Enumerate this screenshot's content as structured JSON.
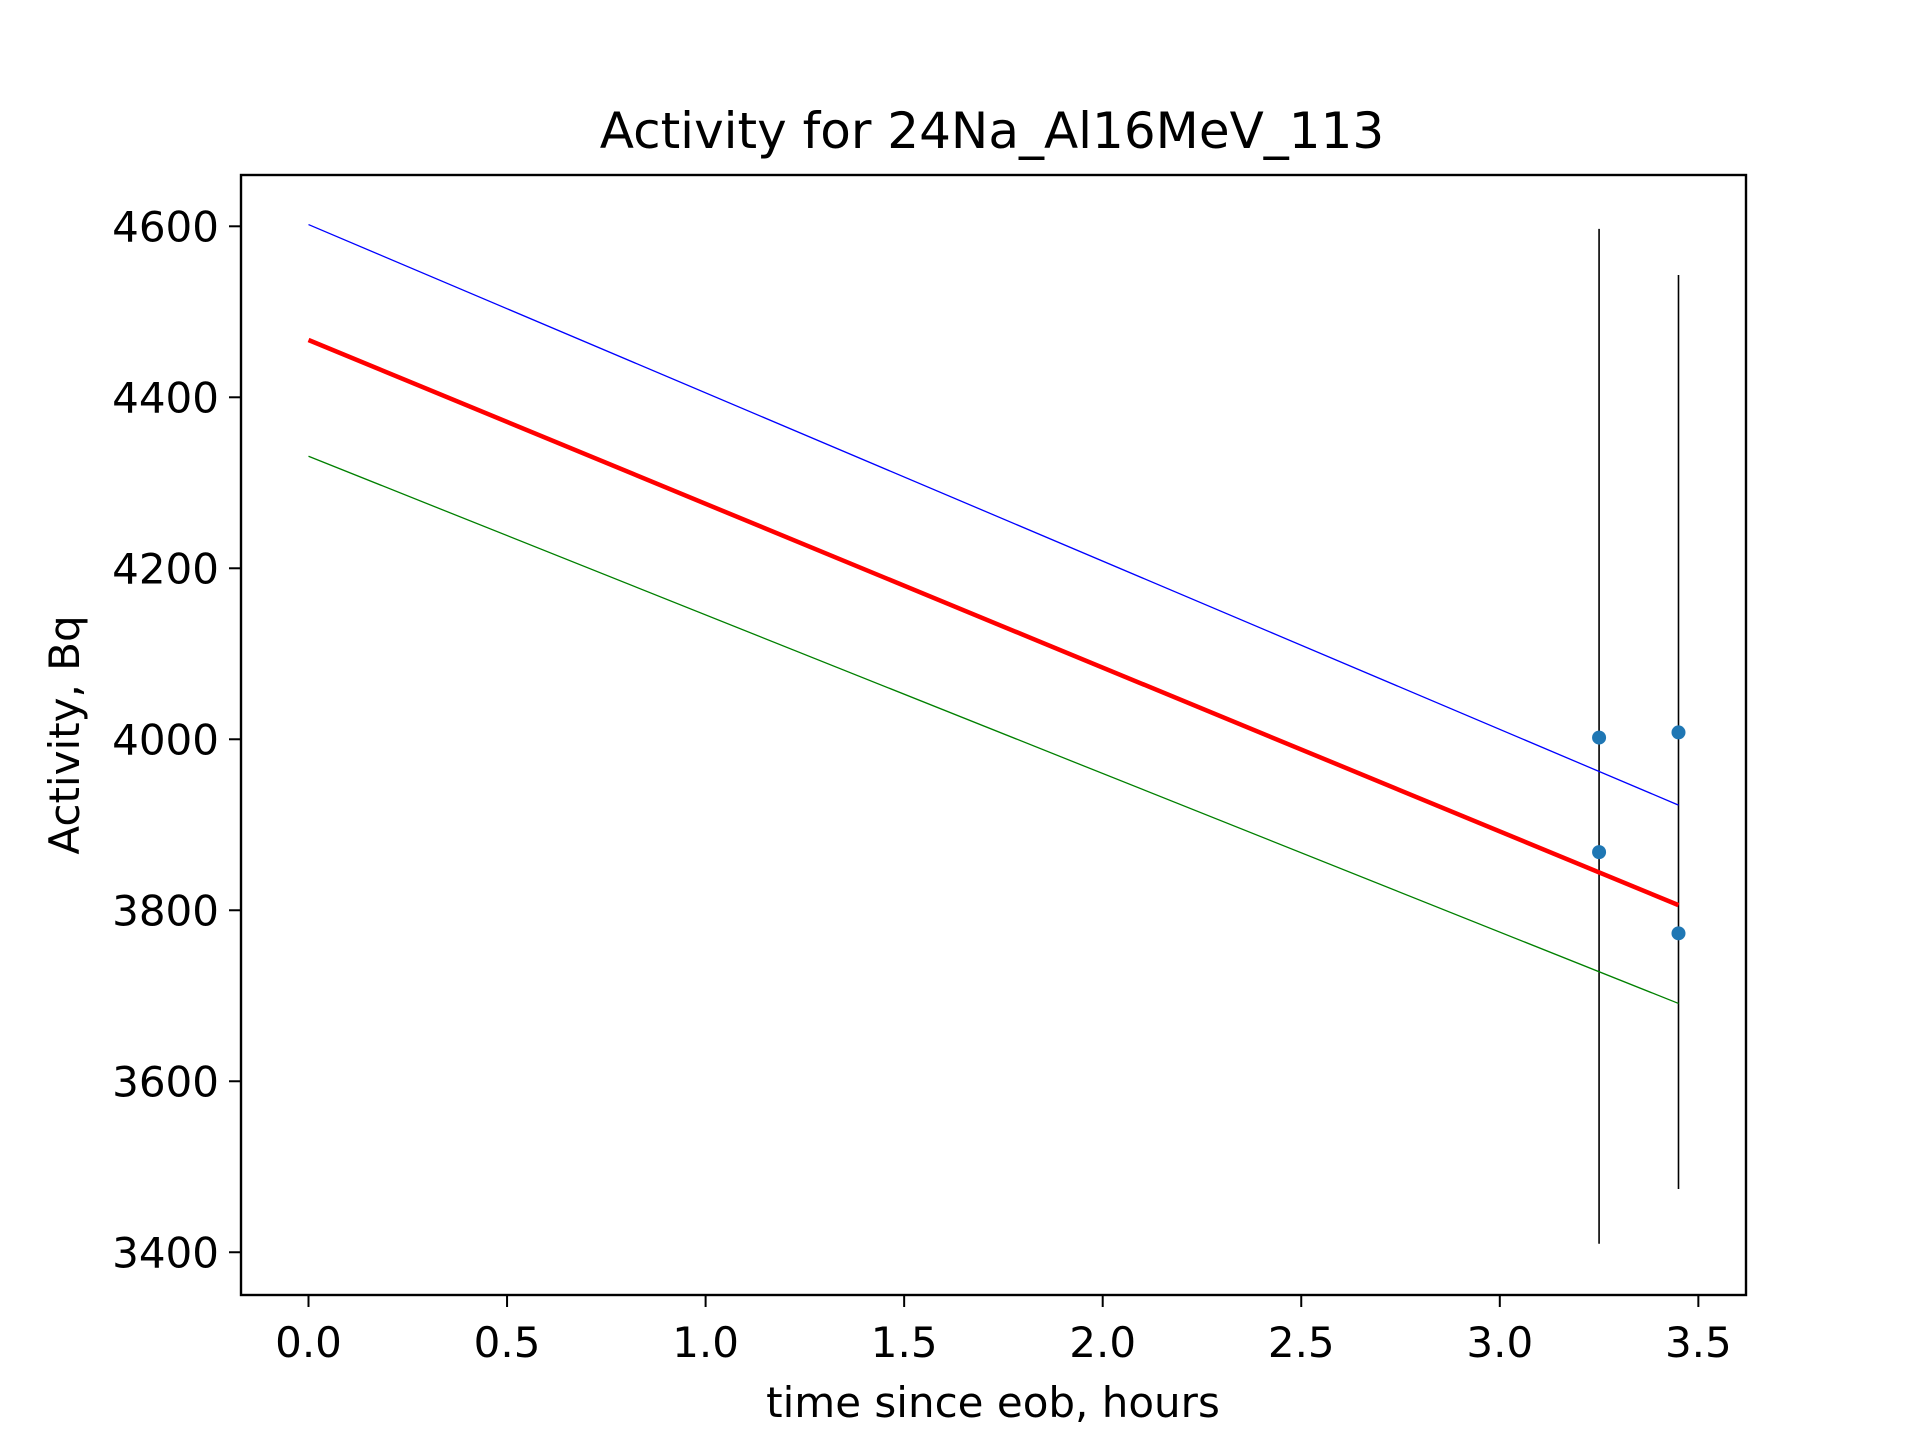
{
  "chart_data": {
    "type": "line",
    "title": "Activity for 24Na_Al16MeV_113",
    "xlabel": "time since eob, hours",
    "ylabel": "Activity, Bq",
    "xlim": [
      -0.17,
      3.62
    ],
    "ylim": [
      3350,
      4660
    ],
    "xticks": [
      0.0,
      0.5,
      1.0,
      1.5,
      2.0,
      2.5,
      3.0,
      3.5
    ],
    "xtick_labels": [
      "0.0",
      "0.5",
      "1.0",
      "1.5",
      "2.0",
      "2.5",
      "3.0",
      "3.5"
    ],
    "yticks": [
      3400,
      3600,
      3800,
      4000,
      4200,
      4400,
      4600
    ],
    "ytick_labels": [
      "3400",
      "3600",
      "3800",
      "4000",
      "4200",
      "4400",
      "4600"
    ],
    "grid": false,
    "series": [
      {
        "x": [
          0.0,
          3.45
        ],
        "y": [
          4467,
          3806
        ],
        "color": "#ff0000",
        "style": "fit"
      },
      {
        "x": [
          0.0,
          3.45
        ],
        "y": [
          4602,
          3923
        ],
        "color": "#0000ff",
        "style": "upper-bound"
      },
      {
        "x": [
          0.0,
          3.45
        ],
        "y": [
          4331,
          3691
        ],
        "color": "#008000",
        "style": "lower-bound"
      }
    ],
    "points": {
      "color": "#1f77b4",
      "x": [
        3.25,
        3.25,
        3.45,
        3.45
      ],
      "y": [
        4002,
        3868,
        4008,
        3773
      ]
    },
    "error_bars": {
      "color": "#000000",
      "bars": [
        {
          "x": 3.25,
          "low": 3410,
          "high": 4597
        },
        {
          "x": 3.45,
          "low": 3474,
          "high": 4543
        }
      ]
    }
  }
}
